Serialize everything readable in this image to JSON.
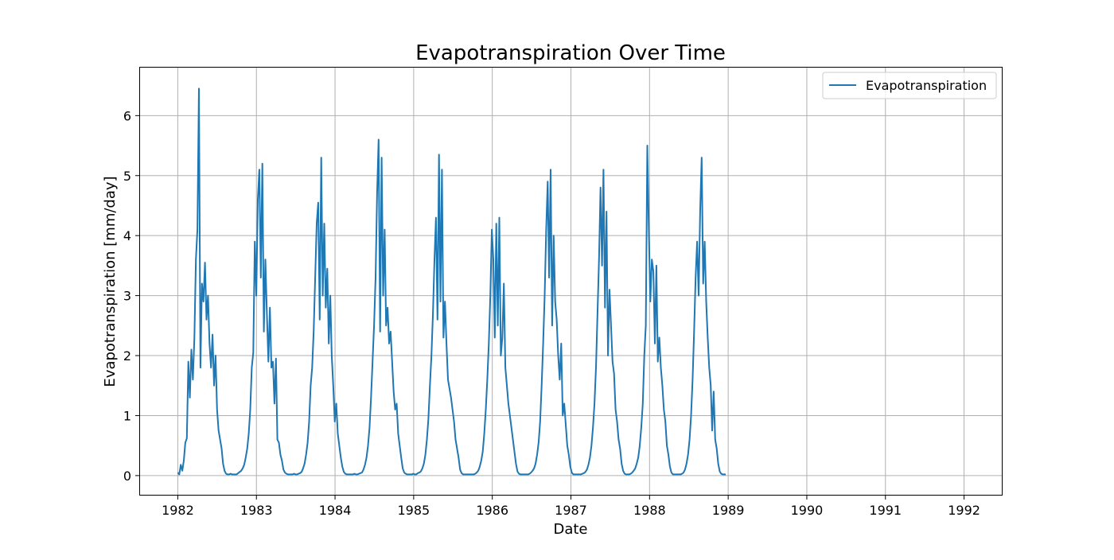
{
  "chart_data": {
    "type": "line",
    "title": "Evapotranspiration Over Time",
    "xlabel": "Date",
    "ylabel": "Evapotranspiration [mm/day]",
    "x_ticks": [
      "1982",
      "1983",
      "1984",
      "1985",
      "1986",
      "1987",
      "1988",
      "1989",
      "1990",
      "1991",
      "1992"
    ],
    "y_ticks": [
      "0",
      "1",
      "2",
      "3",
      "4",
      "5",
      "6"
    ],
    "xlim": [
      1981.52,
      1992.48
    ],
    "ylim": [
      -0.32,
      6.8
    ],
    "grid": true,
    "legend_position": "top-right",
    "series": [
      {
        "name": "Evapotranspiration",
        "color": "#1f77b4",
        "x_unit": "year (decimal)",
        "y_unit": "mm/day",
        "x_start": 1982.0,
        "x_step": 0.0192,
        "values": [
          0.05,
          0.02,
          0.18,
          0.08,
          0.25,
          0.55,
          0.62,
          1.9,
          1.3,
          2.1,
          1.6,
          2.3,
          3.6,
          4.1,
          6.45,
          1.8,
          3.2,
          2.9,
          3.55,
          2.6,
          3.0,
          2.2,
          1.8,
          2.35,
          1.5,
          2.0,
          1.1,
          0.75,
          0.6,
          0.45,
          0.2,
          0.08,
          0.03,
          0.02,
          0.02,
          0.03,
          0.02,
          0.02,
          0.02,
          0.02,
          0.04,
          0.06,
          0.08,
          0.12,
          0.18,
          0.3,
          0.45,
          0.7,
          1.1,
          1.8,
          2.05,
          3.9,
          3.0,
          4.6,
          5.1,
          3.3,
          5.2,
          2.4,
          3.6,
          2.7,
          1.9,
          2.8,
          1.8,
          1.9,
          1.2,
          1.95,
          0.6,
          0.55,
          0.35,
          0.25,
          0.1,
          0.05,
          0.03,
          0.02,
          0.02,
          0.02,
          0.02,
          0.03,
          0.02,
          0.02,
          0.03,
          0.04,
          0.06,
          0.12,
          0.2,
          0.35,
          0.55,
          0.9,
          1.5,
          1.8,
          2.4,
          3.3,
          4.2,
          4.55,
          2.6,
          5.3,
          3.0,
          4.2,
          2.8,
          3.45,
          2.2,
          3.0,
          2.0,
          1.5,
          0.9,
          1.2,
          0.7,
          0.5,
          0.3,
          0.15,
          0.06,
          0.03,
          0.02,
          0.02,
          0.02,
          0.02,
          0.02,
          0.03,
          0.02,
          0.02,
          0.03,
          0.04,
          0.05,
          0.1,
          0.18,
          0.3,
          0.5,
          0.8,
          1.3,
          1.9,
          2.5,
          3.3,
          4.7,
          5.6,
          2.4,
          5.3,
          3.0,
          4.1,
          2.5,
          2.8,
          2.2,
          2.4,
          1.9,
          1.4,
          1.1,
          1.2,
          0.7,
          0.5,
          0.3,
          0.12,
          0.05,
          0.03,
          0.02,
          0.02,
          0.02,
          0.02,
          0.03,
          0.02,
          0.02,
          0.04,
          0.05,
          0.07,
          0.12,
          0.2,
          0.35,
          0.6,
          0.95,
          1.5,
          2.0,
          2.7,
          3.6,
          4.3,
          2.6,
          5.35,
          2.9,
          5.1,
          2.3,
          2.9,
          2.2,
          1.6,
          1.45,
          1.3,
          1.1,
          0.9,
          0.6,
          0.45,
          0.3,
          0.1,
          0.04,
          0.02,
          0.02,
          0.02,
          0.02,
          0.02,
          0.02,
          0.02,
          0.02,
          0.03,
          0.05,
          0.08,
          0.15,
          0.25,
          0.4,
          0.7,
          1.1,
          1.6,
          2.2,
          3.0,
          4.1,
          3.6,
          2.3,
          4.2,
          2.5,
          4.3,
          2.0,
          2.3,
          3.2,
          1.8,
          1.5,
          1.2,
          1.0,
          0.8,
          0.6,
          0.4,
          0.2,
          0.07,
          0.03,
          0.02,
          0.02,
          0.02,
          0.02,
          0.02,
          0.02,
          0.03,
          0.05,
          0.08,
          0.12,
          0.2,
          0.35,
          0.55,
          0.9,
          1.5,
          2.2,
          3.0,
          4.1,
          4.9,
          3.3,
          5.1,
          2.5,
          4.0,
          2.9,
          2.6,
          2.0,
          1.6,
          2.2,
          1.0,
          1.2,
          0.85,
          0.5,
          0.35,
          0.15,
          0.05,
          0.02,
          0.02,
          0.02,
          0.02,
          0.02,
          0.02,
          0.03,
          0.04,
          0.06,
          0.1,
          0.18,
          0.3,
          0.5,
          0.8,
          1.2,
          1.8,
          2.7,
          3.6,
          4.8,
          3.5,
          5.1,
          2.8,
          4.4,
          2.0,
          3.1,
          2.5,
          1.9,
          1.7,
          1.1,
          0.9,
          0.6,
          0.45,
          0.2,
          0.08,
          0.03,
          0.02,
          0.02,
          0.02,
          0.03,
          0.05,
          0.08,
          0.12,
          0.2,
          0.3,
          0.5,
          0.8,
          1.2,
          2.0,
          2.5,
          5.5,
          4.1,
          2.9,
          3.6,
          3.4,
          2.2,
          3.5,
          1.9,
          2.3,
          1.8,
          1.5,
          1.1,
          0.9,
          0.5,
          0.35,
          0.15,
          0.05,
          0.02,
          0.02,
          0.02,
          0.02,
          0.02,
          0.02,
          0.03,
          0.05,
          0.1,
          0.2,
          0.35,
          0.6,
          1.0,
          1.6,
          2.4,
          3.3,
          3.9,
          3.0,
          4.4,
          5.3,
          3.2,
          3.9,
          2.9,
          2.3,
          1.8,
          1.5,
          0.75,
          1.4,
          0.6,
          0.45,
          0.2,
          0.07,
          0.03,
          0.02,
          0.02,
          0.02
        ]
      }
    ]
  }
}
